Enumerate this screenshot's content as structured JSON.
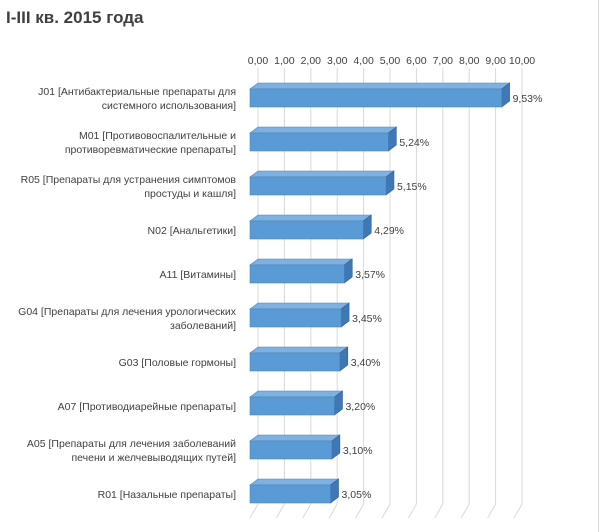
{
  "chart": {
    "title": "I-III кв. 2015 года"
  },
  "chart_data": {
    "type": "bar",
    "orientation": "horizontal",
    "style": "3d",
    "title": "I-III кв. 2015 года",
    "xlabel": "",
    "ylabel": "",
    "xlim": [
      0,
      10
    ],
    "x_ticks": [
      "0,00",
      "1,00",
      "2,00",
      "3,00",
      "4,00",
      "5,00",
      "6,00",
      "7,00",
      "8,00",
      "9,00",
      "10,00"
    ],
    "grid": true,
    "legend": "none",
    "bar_color": "#5b9bd5",
    "categories": [
      [
        "J01 [Антибактериальные препараты для",
        "системного использования]"
      ],
      [
        "M01 [Противовоспалительные и",
        "противоревматические препараты]"
      ],
      [
        "R05 [Препараты для устранения симптомов",
        "простуды и кашля]"
      ],
      [
        "N02 [Анальгетики]"
      ],
      [
        "A11 [Витамины]"
      ],
      [
        "G04 [Препараты для лечения урологических",
        "заболеваний]"
      ],
      [
        "G03 [Половые гормоны]"
      ],
      [
        "A07 [Противодиарейные препараты]"
      ],
      [
        "A05 [Препараты для лечения заболеваний",
        "печени и желчевыводящих путей]"
      ],
      [
        "R01 [Назальные препараты]"
      ]
    ],
    "values": [
      9.53,
      5.24,
      5.15,
      4.29,
      3.57,
      3.45,
      3.4,
      3.2,
      3.1,
      3.05
    ],
    "data_labels": [
      "9,53%",
      "5,24%",
      "5,15%",
      "4,29%",
      "3,57%",
      "3,45%",
      "3,40%",
      "3,20%",
      "3,10%",
      "3,05%"
    ]
  }
}
